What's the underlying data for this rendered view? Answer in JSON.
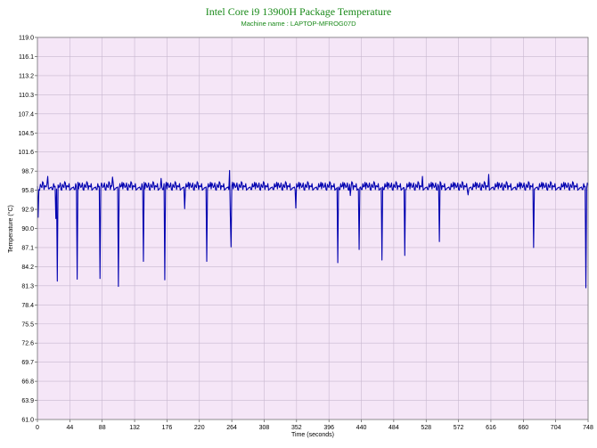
{
  "chart_data": {
    "type": "line",
    "title": "Intel Core i9 13900H Package Temperature",
    "subtitle": "Machine name : LAPTOP-MFROG07D",
    "xlabel": "Time (seconds)",
    "ylabel": "Temperature (°C)",
    "xlim": [
      0,
      748
    ],
    "ylim": [
      61.0,
      119.0
    ],
    "x_ticks": [
      0,
      44,
      88,
      132,
      176,
      220,
      264,
      308,
      352,
      396,
      440,
      484,
      528,
      572,
      616,
      660,
      704,
      748
    ],
    "y_ticks": [
      61.0,
      63.9,
      66.8,
      69.7,
      72.6,
      75.5,
      78.4,
      81.3,
      84.2,
      87.1,
      90.0,
      92.9,
      95.8,
      98.7,
      101.6,
      104.5,
      107.4,
      110.3,
      113.2,
      116.1,
      119.0
    ],
    "grid": true,
    "background_color": "#f5e6f7",
    "line_color": "#0000b0",
    "series": [
      {
        "baseline": [
          96.4,
          96.8,
          95.8,
          97.0,
          96.2,
          96.6,
          95.9,
          96.9,
          96.3,
          96.7,
          96.0,
          97.1,
          96.2,
          96.5,
          95.9,
          96.8,
          96.4,
          96.0,
          96.9,
          96.3
        ],
        "spikes": [
          {
            "x": 1,
            "y": 91.7
          },
          {
            "x": 14,
            "y": 97.9
          },
          {
            "x": 25,
            "y": 91.5
          },
          {
            "x": 27,
            "y": 82.0
          },
          {
            "x": 54,
            "y": 82.3
          },
          {
            "x": 85,
            "y": 82.4
          },
          {
            "x": 102,
            "y": 97.8
          },
          {
            "x": 110,
            "y": 81.2
          },
          {
            "x": 144,
            "y": 85.0
          },
          {
            "x": 168,
            "y": 97.6
          },
          {
            "x": 173,
            "y": 82.2
          },
          {
            "x": 200,
            "y": 93.0
          },
          {
            "x": 230,
            "y": 85.0
          },
          {
            "x": 261,
            "y": 98.8
          },
          {
            "x": 262,
            "y": 92.0
          },
          {
            "x": 263,
            "y": 87.2
          },
          {
            "x": 351,
            "y": 93.1
          },
          {
            "x": 408,
            "y": 84.8
          },
          {
            "x": 425,
            "y": 95.0
          },
          {
            "x": 437,
            "y": 86.8
          },
          {
            "x": 468,
            "y": 85.2
          },
          {
            "x": 499,
            "y": 85.9
          },
          {
            "x": 523,
            "y": 97.9
          },
          {
            "x": 546,
            "y": 88.0
          },
          {
            "x": 585,
            "y": 95.1
          },
          {
            "x": 613,
            "y": 98.2
          },
          {
            "x": 674,
            "y": 87.1
          },
          {
            "x": 745,
            "y": 81.0
          }
        ]
      }
    ]
  }
}
